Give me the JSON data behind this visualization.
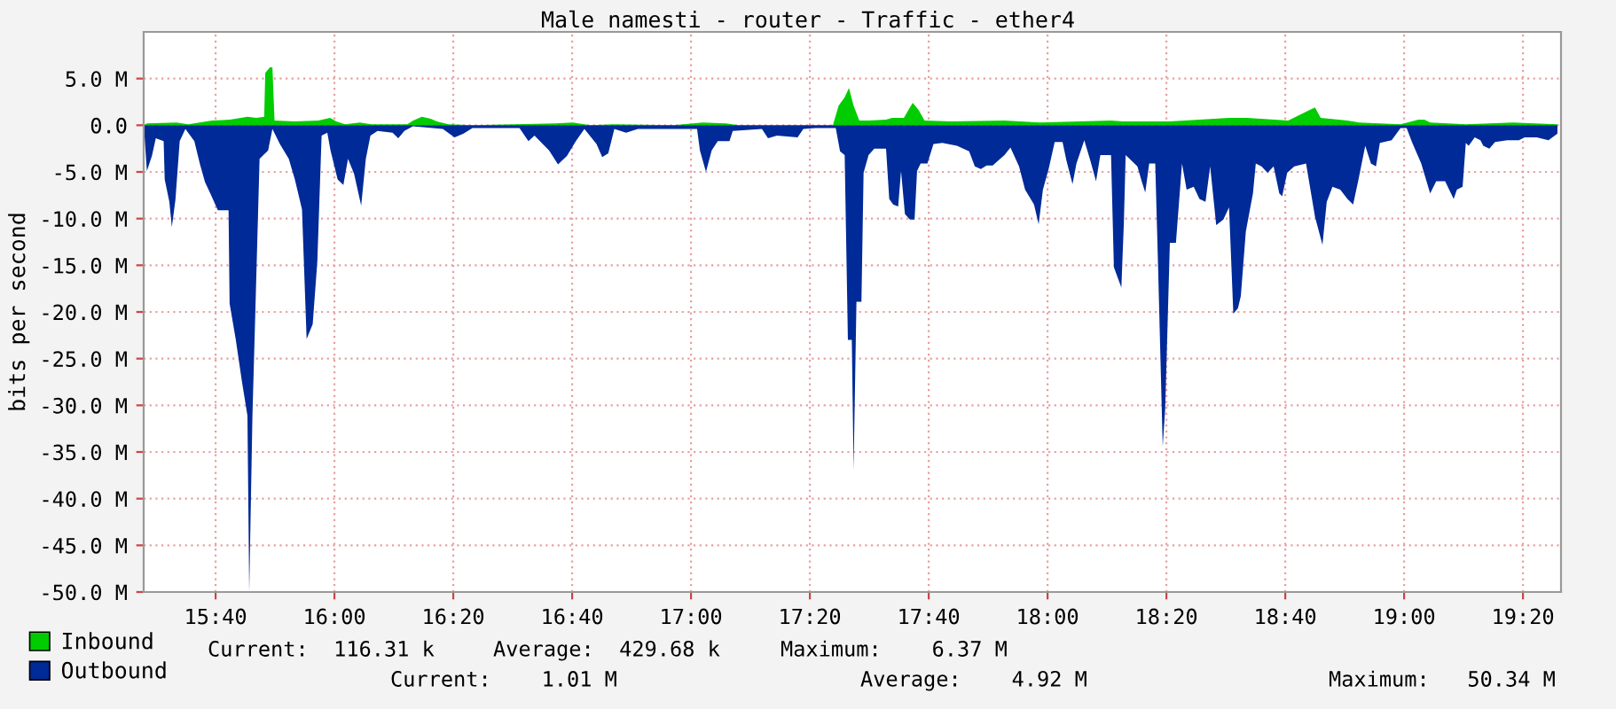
{
  "chart_data": {
    "type": "area",
    "title": "Male namesti - router - Traffic - ether4",
    "ylabel": "bits per second",
    "xlim": [
      15.465,
      19.44
    ],
    "xticks": [
      {
        "value": 15.6667,
        "label": "15:40"
      },
      {
        "value": 16.0,
        "label": "16:00"
      },
      {
        "value": 16.3333,
        "label": "16:20"
      },
      {
        "value": 16.6667,
        "label": "16:40"
      },
      {
        "value": 17.0,
        "label": "17:00"
      },
      {
        "value": 17.3333,
        "label": "17:20"
      },
      {
        "value": 17.6667,
        "label": "17:40"
      },
      {
        "value": 18.0,
        "label": "18:00"
      },
      {
        "value": 18.3333,
        "label": "18:20"
      },
      {
        "value": 18.6667,
        "label": "18:40"
      },
      {
        "value": 19.0,
        "label": "19:00"
      },
      {
        "value": 19.3333,
        "label": "19:20"
      }
    ],
    "ylim": [
      -50,
      10
    ],
    "yticks": [
      {
        "value": 5,
        "label": "5.0 M"
      },
      {
        "value": 0,
        "label": "0.0"
      },
      {
        "value": -5,
        "label": "-5.0 M"
      },
      {
        "value": -10,
        "label": "-10.0 M"
      },
      {
        "value": -15,
        "label": "-15.0 M"
      },
      {
        "value": -20,
        "label": "-20.0 M"
      },
      {
        "value": -25,
        "label": "-25.0 M"
      },
      {
        "value": -30,
        "label": "-30.0 M"
      },
      {
        "value": -35,
        "label": "-35.0 M"
      },
      {
        "value": -40,
        "label": "-40.0 M"
      },
      {
        "value": -45,
        "label": "-45.0 M"
      },
      {
        "value": -50,
        "label": "-50.0 M"
      }
    ],
    "grid": true,
    "legend": "bottom left",
    "series": [
      {
        "name": "Inbound",
        "color": "#00cc00",
        "x": [
          15.466,
          15.474,
          15.557,
          15.59,
          15.657,
          15.707,
          15.756,
          15.781,
          15.803,
          15.806,
          15.819,
          15.826,
          15.832,
          15.889,
          15.955,
          15.988,
          16.005,
          16.03,
          16.071,
          16.104,
          16.204,
          16.221,
          16.245,
          16.27,
          16.287,
          16.32,
          16.386,
          16.619,
          16.668,
          16.718,
          16.784,
          16.95,
          17.033,
          17.099,
          17.133,
          17.398,
          17.414,
          17.431,
          17.443,
          17.456,
          17.472,
          17.498,
          17.547,
          17.564,
          17.597,
          17.614,
          17.622,
          17.639,
          17.655,
          17.73,
          17.879,
          17.979,
          18.178,
          18.211,
          18.343,
          18.509,
          18.559,
          18.675,
          18.733,
          18.75,
          18.766,
          18.841,
          18.874,
          18.99,
          19.04,
          19.057,
          19.073,
          19.173,
          19.305,
          19.43
        ],
        "values": [
          0.0,
          0.2,
          0.3,
          0.1,
          0.5,
          0.6,
          0.9,
          0.8,
          0.9,
          5.6,
          6.2,
          6.2,
          0.5,
          0.4,
          0.5,
          0.8,
          0.4,
          0.1,
          0.3,
          0.1,
          0.1,
          0.5,
          0.9,
          0.7,
          0.4,
          0.1,
          0.0,
          0.2,
          0.3,
          0.0,
          0.1,
          0.0,
          0.3,
          0.2,
          0.0,
          0.0,
          2.1,
          3.0,
          4.0,
          2.1,
          0.5,
          0.5,
          0.6,
          0.8,
          0.8,
          1.9,
          2.4,
          1.6,
          0.5,
          0.4,
          0.5,
          0.3,
          0.5,
          0.4,
          0.4,
          0.8,
          0.8,
          0.5,
          1.6,
          1.9,
          0.8,
          0.5,
          0.3,
          0.1,
          0.6,
          0.6,
          0.3,
          0.1,
          0.3,
          0.1
        ]
      },
      {
        "name": "Outbound",
        "color": "#002a97",
        "x": [
          15.466,
          15.474,
          15.488,
          15.499,
          15.521,
          15.524,
          15.537,
          15.544,
          15.554,
          15.566,
          15.582,
          15.607,
          15.623,
          15.637,
          15.653,
          15.673,
          15.703,
          15.706,
          15.723,
          15.74,
          15.756,
          15.761,
          15.77,
          15.776,
          15.79,
          15.814,
          15.826,
          15.847,
          15.872,
          15.889,
          15.909,
          15.922,
          15.939,
          15.952,
          15.964,
          15.98,
          15.989,
          16.009,
          16.025,
          16.038,
          16.055,
          16.075,
          16.088,
          16.101,
          16.121,
          16.163,
          16.179,
          16.196,
          16.22,
          16.304,
          16.337,
          16.362,
          16.387,
          16.519,
          16.544,
          16.561,
          16.602,
          16.627,
          16.652,
          16.677,
          16.701,
          16.735,
          16.751,
          16.768,
          16.785,
          16.818,
          16.851,
          17.017,
          17.025,
          17.042,
          17.058,
          17.075,
          17.108,
          17.117,
          17.199,
          17.216,
          17.241,
          17.299,
          17.315,
          17.348,
          17.406,
          17.418,
          17.431,
          17.44,
          17.451,
          17.456,
          17.464,
          17.478,
          17.484,
          17.498,
          17.514,
          17.547,
          17.556,
          17.567,
          17.581,
          17.589,
          17.6,
          17.614,
          17.627,
          17.634,
          17.644,
          17.663,
          17.68,
          17.705,
          17.746,
          17.78,
          17.796,
          17.813,
          17.829,
          17.846,
          17.879,
          17.896,
          17.92,
          17.937,
          17.962,
          17.975,
          17.987,
          18.003,
          18.02,
          18.042,
          18.053,
          18.07,
          18.081,
          18.103,
          18.12,
          18.136,
          18.148,
          18.178,
          18.186,
          18.207,
          18.214,
          18.219,
          18.252,
          18.264,
          18.274,
          18.285,
          18.302,
          18.31,
          18.323,
          18.33,
          18.343,
          18.36,
          18.377,
          18.39,
          18.41,
          18.426,
          18.443,
          18.456,
          18.473,
          18.493,
          18.509,
          18.521,
          18.534,
          18.542,
          18.556,
          18.576,
          18.584,
          18.6,
          18.617,
          18.634,
          18.65,
          18.658,
          18.672,
          18.692,
          18.725,
          18.75,
          18.771,
          18.783,
          18.799,
          18.821,
          18.841,
          18.857,
          18.871,
          18.891,
          18.907,
          18.921,
          18.932,
          18.965,
          18.99,
          19.007,
          19.023,
          19.048,
          19.073,
          19.09,
          19.115,
          19.139,
          19.148,
          19.164,
          19.173,
          19.181,
          19.198,
          19.214,
          19.222,
          19.239,
          19.255,
          19.289,
          19.322,
          19.338,
          19.372,
          19.405,
          19.43
        ],
        "values": [
          -0.4,
          -4.9,
          -3.3,
          -1.4,
          -1.7,
          -5.8,
          -8.2,
          -10.9,
          -8.0,
          -1.7,
          -0.4,
          -1.7,
          -4.2,
          -6.1,
          -7.4,
          -9.1,
          -9.1,
          -19.1,
          -22.9,
          -27.3,
          -31.1,
          -50.0,
          -31.1,
          -22.9,
          -3.6,
          -2.7,
          -0.4,
          -2.0,
          -3.6,
          -5.8,
          -9.0,
          -22.9,
          -21.3,
          -14.6,
          -1.1,
          -0.8,
          -2.7,
          -5.8,
          -6.4,
          -3.6,
          -5.2,
          -8.6,
          -3.6,
          -1.1,
          -0.6,
          -0.8,
          -1.4,
          -0.6,
          -0.1,
          -0.4,
          -1.3,
          -0.9,
          -0.3,
          -0.3,
          -1.7,
          -1.1,
          -2.7,
          -4.2,
          -3.3,
          -1.7,
          -0.4,
          -2.0,
          -3.4,
          -3.0,
          -0.4,
          -0.8,
          -0.4,
          -0.4,
          -2.7,
          -5.0,
          -2.7,
          -1.7,
          -1.7,
          -0.6,
          -0.4,
          -1.4,
          -1.1,
          -1.3,
          -0.4,
          -0.3,
          -0.3,
          -2.8,
          -3.2,
          -23.0,
          -23.0,
          -36.9,
          -18.9,
          -18.9,
          -5.1,
          -3.2,
          -2.5,
          -2.5,
          -7.9,
          -8.5,
          -8.7,
          -4.9,
          -9.5,
          -10.1,
          -10.1,
          -4.9,
          -4.1,
          -4.1,
          -2.0,
          -1.9,
          -2.2,
          -2.8,
          -4.4,
          -4.7,
          -4.3,
          -4.3,
          -3.2,
          -2.4,
          -4.4,
          -6.9,
          -8.5,
          -10.6,
          -6.9,
          -4.7,
          -1.8,
          -1.8,
          -3.8,
          -6.3,
          -4.1,
          -1.6,
          -3.8,
          -6.0,
          -3.2,
          -3.2,
          -15.2,
          -17.4,
          -10.4,
          -3.2,
          -4.4,
          -6.0,
          -7.2,
          -4.1,
          -4.1,
          -15.2,
          -34.4,
          -30.3,
          -12.6,
          -12.6,
          -4.1,
          -6.9,
          -6.6,
          -7.9,
          -8.2,
          -4.4,
          -10.7,
          -10.1,
          -8.8,
          -20.2,
          -19.6,
          -18.3,
          -11.4,
          -7.3,
          -4.1,
          -4.4,
          -5.1,
          -4.4,
          -7.3,
          -7.6,
          -5.1,
          -4.4,
          -4.1,
          -9.8,
          -12.8,
          -8.2,
          -6.6,
          -6.9,
          -7.9,
          -8.5,
          -6.0,
          -2.2,
          -4.1,
          -4.4,
          -1.9,
          -1.6,
          -0.3,
          -0.3,
          -1.9,
          -4.1,
          -7.3,
          -6.0,
          -6.0,
          -7.9,
          -6.9,
          -6.6,
          -1.9,
          -2.2,
          -1.3,
          -1.6,
          -2.2,
          -2.5,
          -1.8,
          -1.6,
          -1.6,
          -1.3,
          -1.3,
          -1.6,
          -0.9
        ]
      }
    ],
    "annotations": [
      "Current:  116.31 k",
      "Average:  429.68 k",
      "Maximum:    6.37 M",
      "Current:    1.01 M",
      "Average:    4.92 M",
      "Maximum:   50.34 M"
    ]
  }
}
